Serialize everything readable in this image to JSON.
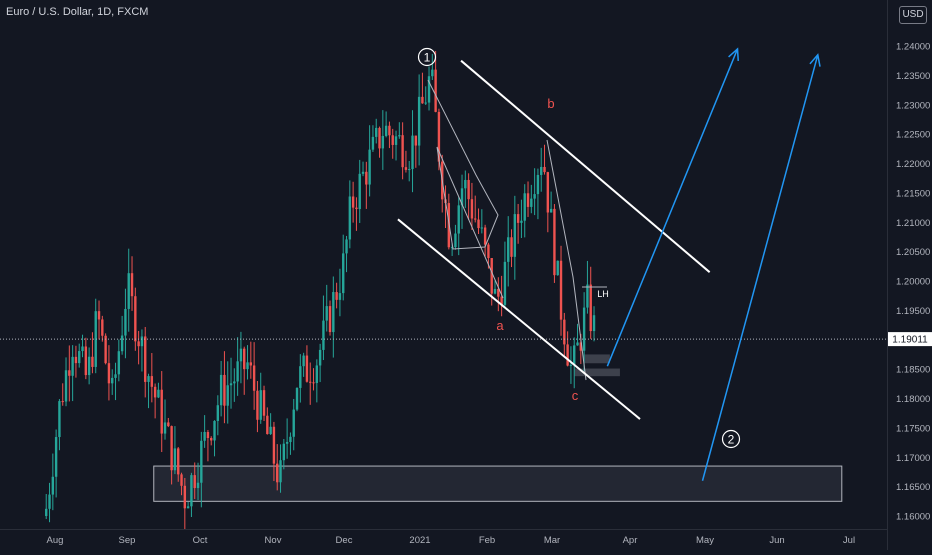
{
  "header": {
    "title": "Euro / U.S. Dollar, 1D, FXCM"
  },
  "price_axis": {
    "currency": "USD",
    "current_price_label": "1.19011"
  },
  "colors": {
    "background": "#131722",
    "up_candle": "#26a69a",
    "down_candle": "#ef5350",
    "trendline": "#ffffff",
    "thin_line": "#b2b5be",
    "projection_arrow": "#2196f3",
    "wave_label": "#ef5350",
    "zone_fill": "#2a2e39",
    "axis_text": "#b2b5be"
  },
  "annotations": {
    "wave_1": "1",
    "wave_2": "2",
    "label_a": "a",
    "label_b": "b",
    "label_c": "c",
    "label_lh": "LH"
  },
  "chart_data": {
    "type": "candlestick",
    "title": "Euro / U.S. Dollar, 1D, FXCM",
    "y_axis": {
      "ticks": [
        "1.24000",
        "1.23500",
        "1.23000",
        "1.22500",
        "1.22000",
        "1.21500",
        "1.21000",
        "1.20500",
        "1.20000",
        "1.19500",
        "1.19000",
        "1.18500",
        "1.18000",
        "1.17500",
        "1.17000",
        "1.16500",
        "1.16000"
      ],
      "range": [
        1.158,
        1.2455
      ]
    },
    "x_axis": {
      "ticks": [
        "Aug",
        "Sep",
        "Oct",
        "Nov",
        "Dec",
        "2021",
        "Feb",
        "Mar",
        "Apr",
        "May",
        "Jun",
        "Jul"
      ]
    },
    "last_price": 1.19011,
    "price_path": [
      [
        "Jul 24",
        1.16
      ],
      [
        "Jul 31",
        1.179
      ],
      [
        "Aug 6",
        1.19
      ],
      [
        "Aug 13",
        1.183
      ],
      [
        "Aug 18",
        1.194
      ],
      [
        "Aug 25",
        1.18
      ],
      [
        "Sep 1",
        1.199
      ],
      [
        "Sep 10",
        1.184
      ],
      [
        "Sep 25",
        1.163
      ],
      [
        "Oct 10",
        1.181
      ],
      [
        "Oct 21",
        1.186
      ],
      [
        "Nov 4",
        1.166
      ],
      [
        "Nov 11",
        1.183
      ],
      [
        "Nov 20",
        1.187
      ],
      [
        "Dec 1",
        1.203
      ],
      [
        "Dec 4",
        1.213
      ],
      [
        "Dec 17",
        1.226
      ],
      [
        "Dec 28",
        1.222
      ],
      [
        "Jan 6",
        1.235
      ],
      [
        "Jan 11",
        1.218
      ],
      [
        "Jan 15",
        1.207
      ],
      [
        "Jan 21",
        1.217
      ],
      [
        "Jan 29",
        1.208
      ],
      [
        "Feb 5",
        1.196
      ],
      [
        "Feb 16",
        1.213
      ],
      [
        "Feb 25",
        1.222
      ],
      [
        "Mar 4",
        1.197
      ],
      [
        "Mar 9",
        1.184
      ],
      [
        "Mar 15",
        1.196
      ],
      [
        "Mar 19",
        1.19
      ]
    ],
    "supply_zone": {
      "y_range": [
        1.1625,
        1.1685
      ],
      "x_range": [
        "Sep 12",
        "Jun 28"
      ]
    },
    "small_zones": [
      {
        "y_range": [
          1.186,
          1.1875
        ],
        "x_range": [
          "Mar 14",
          "Mar 24"
        ]
      },
      {
        "y_range": [
          1.1838,
          1.1851
        ],
        "x_range": [
          "Mar 10",
          "Mar 28"
        ]
      }
    ],
    "channel_lines": [
      {
        "name": "upper",
        "from": [
          "Jan 20",
          1.2375
        ],
        "to": [
          "May 3",
          1.2015
        ]
      },
      {
        "name": "lower",
        "from": [
          "Dec 23",
          1.2105
        ],
        "to": [
          "Apr 5",
          1.1765
        ]
      }
    ],
    "projection_arrows": [
      {
        "from": [
          "Mar 23",
          1.1855
        ],
        "to": [
          "May 15",
          1.2395
        ]
      },
      {
        "from": [
          "Apr 30",
          1.166
        ],
        "to": [
          "Jun 18",
          1.2385
        ]
      }
    ]
  }
}
